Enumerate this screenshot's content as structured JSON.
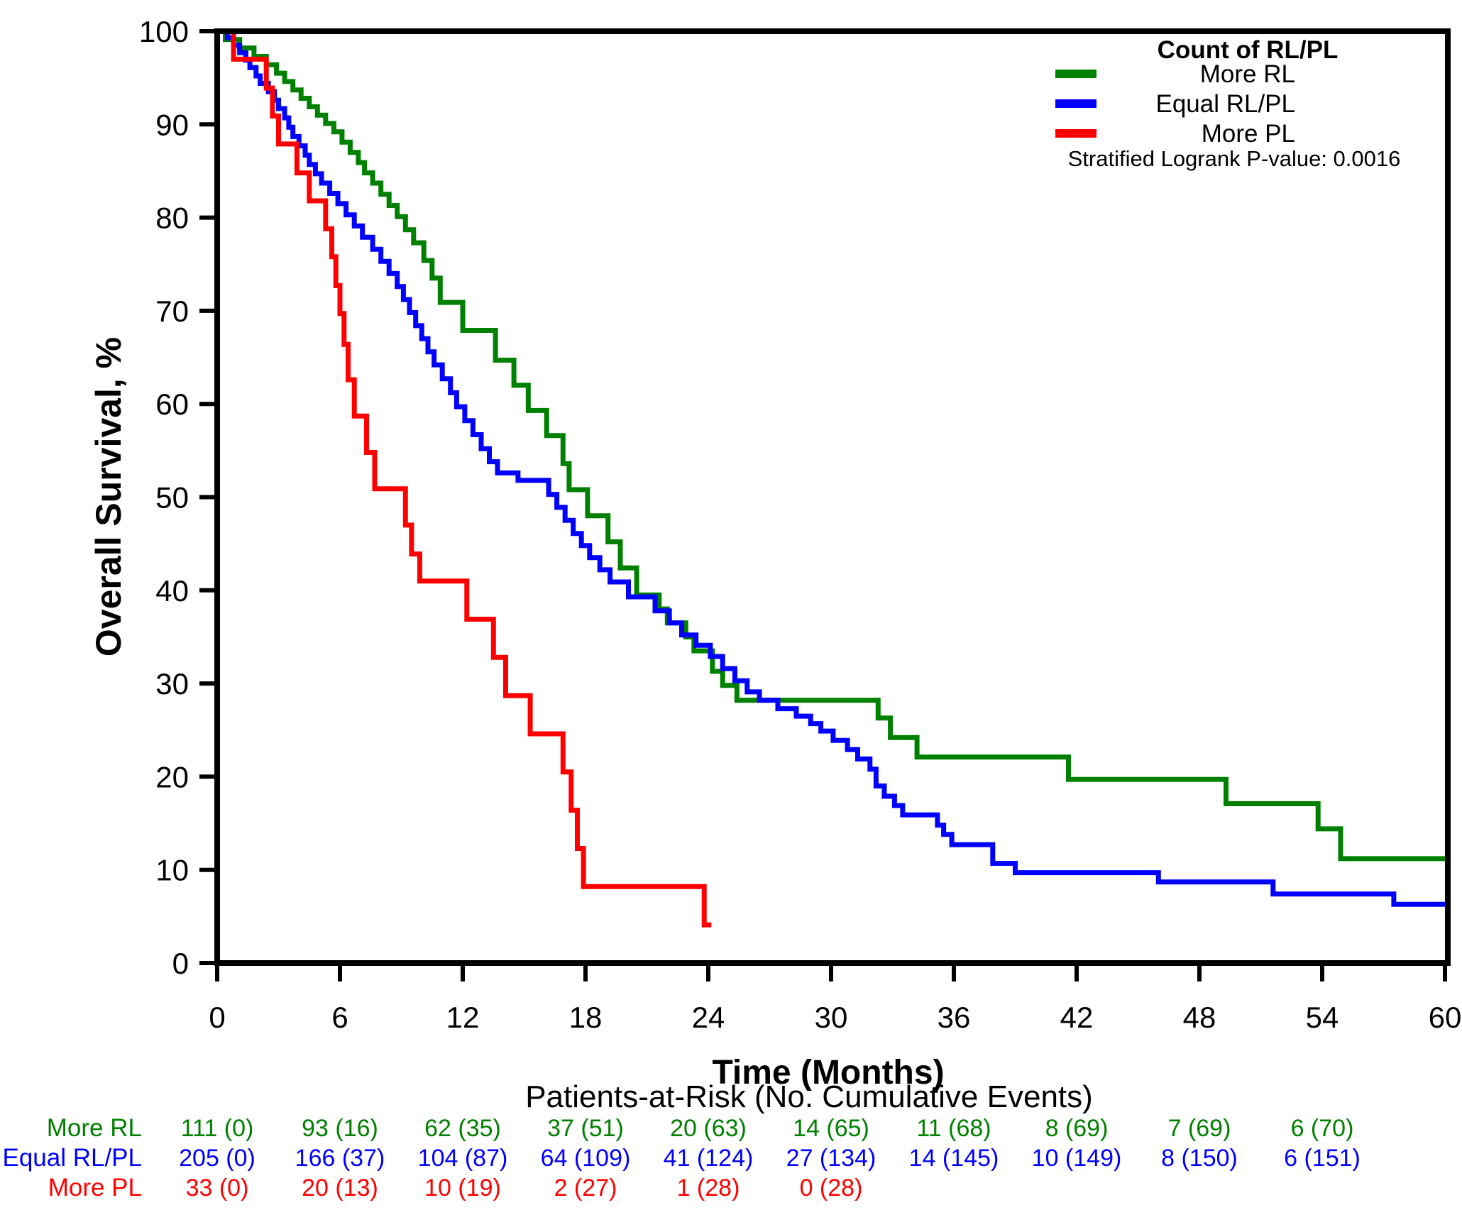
{
  "chart_data": {
    "type": "line",
    "subtype": "kaplan-meier-step",
    "title": "",
    "xlabel": "Time (Months)",
    "ylabel": "Overall Survival, %",
    "xlim": [
      0,
      60
    ],
    "ylim": [
      0,
      100
    ],
    "xticks": [
      0,
      6,
      12,
      18,
      24,
      30,
      36,
      42,
      48,
      54,
      60
    ],
    "yticks": [
      0,
      10,
      20,
      30,
      40,
      50,
      60,
      70,
      80,
      90,
      100
    ],
    "grid": false,
    "legend": {
      "title": "Count of RL/PL",
      "position": "top-right",
      "entries": [
        {
          "label": "More RL",
          "color": "#008000"
        },
        {
          "label": "Equal RL/PL",
          "color": "#0000FF"
        },
        {
          "label": "More PL",
          "color": "#FF0000"
        }
      ]
    },
    "pvalue_note": "Stratified Logrank P-value: 0.0016",
    "series": [
      {
        "name": "More RL",
        "color": "#008000",
        "steps": [
          [
            0,
            100
          ],
          [
            0.4,
            99.1
          ],
          [
            1.1,
            98.2
          ],
          [
            1.8,
            97.3
          ],
          [
            2.4,
            96.4
          ],
          [
            2.9,
            95.5
          ],
          [
            3.3,
            94.6
          ],
          [
            3.7,
            93.7
          ],
          [
            4.1,
            92.8
          ],
          [
            4.5,
            91.9
          ],
          [
            4.9,
            91.0
          ],
          [
            5.3,
            90.1
          ],
          [
            5.7,
            89.2
          ],
          [
            6.1,
            88.1
          ],
          [
            6.5,
            87.0
          ],
          [
            6.9,
            85.9
          ],
          [
            7.2,
            84.8
          ],
          [
            7.6,
            83.7
          ],
          [
            8.0,
            82.5
          ],
          [
            8.4,
            81.3
          ],
          [
            8.8,
            80.1
          ],
          [
            9.2,
            78.7
          ],
          [
            9.6,
            77.3
          ],
          [
            10.1,
            75.4
          ],
          [
            10.5,
            73.5
          ],
          [
            10.9,
            70.9
          ],
          [
            12.0,
            67.9
          ],
          [
            13.6,
            64.7
          ],
          [
            14.5,
            62.0
          ],
          [
            15.2,
            59.3
          ],
          [
            16.1,
            56.6
          ],
          [
            16.9,
            53.6
          ],
          [
            17.2,
            50.8
          ],
          [
            18.1,
            48.0
          ],
          [
            19.1,
            45.2
          ],
          [
            19.7,
            42.4
          ],
          [
            20.5,
            39.5
          ],
          [
            21.6,
            38.0
          ],
          [
            22.0,
            36.5
          ],
          [
            22.9,
            35.0
          ],
          [
            23.3,
            33.5
          ],
          [
            24.2,
            31.3
          ],
          [
            24.7,
            29.8
          ],
          [
            25.4,
            28.2
          ],
          [
            32.3,
            26.3
          ],
          [
            32.9,
            24.2
          ],
          [
            34.2,
            22.1
          ],
          [
            41.6,
            19.7
          ],
          [
            49.3,
            17.1
          ],
          [
            53.8,
            14.4
          ],
          [
            54.9,
            11.2
          ],
          [
            60,
            11.2
          ]
        ]
      },
      {
        "name": "Equal RL/PL",
        "color": "#0000FF",
        "steps": [
          [
            0,
            100
          ],
          [
            0.5,
            99.3
          ],
          [
            0.8,
            98.5
          ],
          [
            1.1,
            97.7
          ],
          [
            1.4,
            96.9
          ],
          [
            1.6,
            96.1
          ],
          [
            1.9,
            95.2
          ],
          [
            2.1,
            94.4
          ],
          [
            2.5,
            93.5
          ],
          [
            2.8,
            92.6
          ],
          [
            3.0,
            91.7
          ],
          [
            3.3,
            90.7
          ],
          [
            3.5,
            89.7
          ],
          [
            3.7,
            88.7
          ],
          [
            4.0,
            87.7
          ],
          [
            4.3,
            86.7
          ],
          [
            4.5,
            85.7
          ],
          [
            4.8,
            84.7
          ],
          [
            5.1,
            83.7
          ],
          [
            5.5,
            82.6
          ],
          [
            5.9,
            81.5
          ],
          [
            6.3,
            80.3
          ],
          [
            6.7,
            79.1
          ],
          [
            7.1,
            77.9
          ],
          [
            7.6,
            76.6
          ],
          [
            8.0,
            75.3
          ],
          [
            8.4,
            74.0
          ],
          [
            8.8,
            72.6
          ],
          [
            9.1,
            71.2
          ],
          [
            9.4,
            69.8
          ],
          [
            9.7,
            68.4
          ],
          [
            10.0,
            67.0
          ],
          [
            10.3,
            65.6
          ],
          [
            10.6,
            64.2
          ],
          [
            11.0,
            62.7
          ],
          [
            11.4,
            61.2
          ],
          [
            11.7,
            59.7
          ],
          [
            12.1,
            58.2
          ],
          [
            12.5,
            56.7
          ],
          [
            12.9,
            55.2
          ],
          [
            13.3,
            53.8
          ],
          [
            13.7,
            52.6
          ],
          [
            14.7,
            51.8
          ],
          [
            16.2,
            50.3
          ],
          [
            16.6,
            48.9
          ],
          [
            17.0,
            47.5
          ],
          [
            17.4,
            46.1
          ],
          [
            17.8,
            44.8
          ],
          [
            18.2,
            43.5
          ],
          [
            18.7,
            42.2
          ],
          [
            19.2,
            40.9
          ],
          [
            20.1,
            39.3
          ],
          [
            21.4,
            37.8
          ],
          [
            22.1,
            36.5
          ],
          [
            22.7,
            35.2
          ],
          [
            23.4,
            34.1
          ],
          [
            24.1,
            32.9
          ],
          [
            24.7,
            31.6
          ],
          [
            25.3,
            30.3
          ],
          [
            25.9,
            29.1
          ],
          [
            26.5,
            28.2
          ],
          [
            27.4,
            27.3
          ],
          [
            28.3,
            26.5
          ],
          [
            29.0,
            25.7
          ],
          [
            29.5,
            24.9
          ],
          [
            30.1,
            23.9
          ],
          [
            30.8,
            22.9
          ],
          [
            31.3,
            21.9
          ],
          [
            31.9,
            20.8
          ],
          [
            32.2,
            19.0
          ],
          [
            32.6,
            17.9
          ],
          [
            33.1,
            16.9
          ],
          [
            33.5,
            15.9
          ],
          [
            35.2,
            14.8
          ],
          [
            35.5,
            13.8
          ],
          [
            35.9,
            12.7
          ],
          [
            37.9,
            10.7
          ],
          [
            39.0,
            9.7
          ],
          [
            46.0,
            8.7
          ],
          [
            51.6,
            7.4
          ],
          [
            57.5,
            6.3
          ],
          [
            60,
            6.3
          ]
        ]
      },
      {
        "name": "More PL",
        "color": "#FF0000",
        "steps": [
          [
            0,
            100
          ],
          [
            0.8,
            97.0
          ],
          [
            2.4,
            93.9
          ],
          [
            2.7,
            90.9
          ],
          [
            3.0,
            87.9
          ],
          [
            3.9,
            84.8
          ],
          [
            4.5,
            81.8
          ],
          [
            5.3,
            78.8
          ],
          [
            5.6,
            75.8
          ],
          [
            5.8,
            72.7
          ],
          [
            6.0,
            69.7
          ],
          [
            6.2,
            66.4
          ],
          [
            6.4,
            62.6
          ],
          [
            6.7,
            58.7
          ],
          [
            7.3,
            54.8
          ],
          [
            7.7,
            50.9
          ],
          [
            9.2,
            47.0
          ],
          [
            9.5,
            43.9
          ],
          [
            9.9,
            41.0
          ],
          [
            12.2,
            36.9
          ],
          [
            13.5,
            32.8
          ],
          [
            14.1,
            28.7
          ],
          [
            15.3,
            24.6
          ],
          [
            16.9,
            20.5
          ],
          [
            17.3,
            16.4
          ],
          [
            17.6,
            12.3
          ],
          [
            17.9,
            8.2
          ],
          [
            23.8,
            4.1
          ],
          [
            24.15,
            4.1
          ]
        ]
      }
    ],
    "risk_table": {
      "title": "Patients-at-Risk (No. Cumulative Events)",
      "time_points": [
        0,
        6,
        12,
        18,
        24,
        30,
        36,
        42,
        48,
        54
      ],
      "rows": [
        {
          "label": "More RL",
          "color": "#008000",
          "values": [
            "111 (0)",
            "93 (16)",
            "62 (35)",
            "37 (51)",
            "20 (63)",
            "14 (65)",
            "11 (68)",
            "8 (69)",
            "7 (69)",
            "6 (70)"
          ]
        },
        {
          "label": "Equal RL/PL",
          "color": "#0000FF",
          "values": [
            "205 (0)",
            "166 (37)",
            "104 (87)",
            "64 (109)",
            "41 (124)",
            "27 (134)",
            "14 (145)",
            "10 (149)",
            "8 (150)",
            "6 (151)"
          ]
        },
        {
          "label": "More PL",
          "color": "#FF0000",
          "values": [
            "33 (0)",
            "20 (13)",
            "10 (19)",
            "2 (27)",
            "1 (28)",
            "0 (28)"
          ]
        }
      ]
    }
  }
}
